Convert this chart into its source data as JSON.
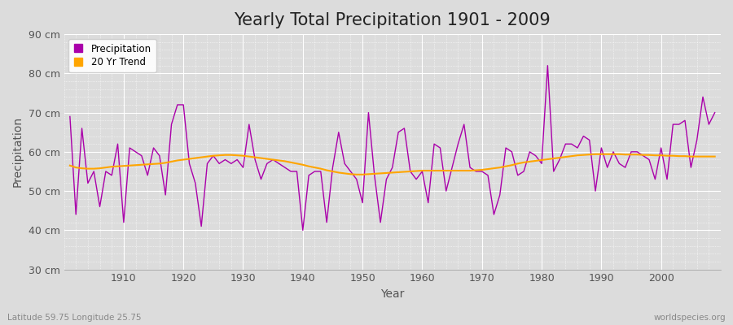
{
  "title": "Yearly Total Precipitation 1901 - 2009",
  "xlabel": "Year",
  "ylabel": "Precipitation",
  "subtitle": "Latitude 59.75 Longitude 25.75",
  "watermark": "worldspecies.org",
  "ylim": [
    30,
    90
  ],
  "yticks": [
    30,
    40,
    50,
    60,
    70,
    80,
    90
  ],
  "ytick_labels": [
    "30 cm",
    "40 cm",
    "50 cm",
    "60 cm",
    "70 cm",
    "80 cm",
    "90 cm"
  ],
  "years": [
    1901,
    1902,
    1903,
    1904,
    1905,
    1906,
    1907,
    1908,
    1909,
    1910,
    1911,
    1912,
    1913,
    1914,
    1915,
    1916,
    1917,
    1918,
    1919,
    1920,
    1921,
    1922,
    1923,
    1924,
    1925,
    1926,
    1927,
    1928,
    1929,
    1930,
    1931,
    1932,
    1933,
    1934,
    1935,
    1936,
    1937,
    1938,
    1939,
    1940,
    1941,
    1942,
    1943,
    1944,
    1945,
    1946,
    1947,
    1948,
    1949,
    1950,
    1951,
    1952,
    1953,
    1954,
    1955,
    1956,
    1957,
    1958,
    1959,
    1960,
    1961,
    1962,
    1963,
    1964,
    1965,
    1966,
    1967,
    1968,
    1969,
    1970,
    1971,
    1972,
    1973,
    1974,
    1975,
    1976,
    1977,
    1978,
    1979,
    1980,
    1981,
    1982,
    1983,
    1984,
    1985,
    1986,
    1987,
    1988,
    1989,
    1990,
    1991,
    1992,
    1993,
    1994,
    1995,
    1996,
    1997,
    1998,
    1999,
    2000,
    2001,
    2002,
    2003,
    2004,
    2005,
    2006,
    2007,
    2008,
    2009
  ],
  "precip": [
    69,
    44,
    66,
    52,
    55,
    46,
    55,
    54,
    62,
    42,
    61,
    60,
    59,
    54,
    61,
    59,
    49,
    67,
    72,
    72,
    57,
    52,
    41,
    57,
    59,
    57,
    58,
    57,
    58,
    56,
    67,
    58,
    53,
    57,
    58,
    57,
    56,
    55,
    55,
    40,
    54,
    55,
    55,
    42,
    56,
    65,
    57,
    55,
    53,
    47,
    70,
    54,
    42,
    53,
    56,
    65,
    66,
    55,
    53,
    55,
    47,
    62,
    61,
    50,
    56,
    62,
    67,
    56,
    55,
    55,
    54,
    44,
    49,
    61,
    60,
    54,
    55,
    60,
    59,
    57,
    82,
    55,
    58,
    62,
    62,
    61,
    64,
    63,
    50,
    61,
    56,
    60,
    57,
    56,
    60,
    60,
    59,
    58,
    53,
    61,
    53,
    67,
    67,
    68,
    56,
    63,
    74,
    67,
    70
  ],
  "trend": [
    56.5,
    56.0,
    55.8,
    55.7,
    55.7,
    55.8,
    56.0,
    56.2,
    56.3,
    56.4,
    56.5,
    56.6,
    56.7,
    56.8,
    56.9,
    57.0,
    57.2,
    57.5,
    57.8,
    58.0,
    58.2,
    58.4,
    58.6,
    58.8,
    59.0,
    59.1,
    59.2,
    59.2,
    59.1,
    59.0,
    58.8,
    58.6,
    58.4,
    58.2,
    58.0,
    57.8,
    57.6,
    57.3,
    57.0,
    56.7,
    56.3,
    56.0,
    55.7,
    55.3,
    55.0,
    54.7,
    54.5,
    54.3,
    54.2,
    54.2,
    54.3,
    54.4,
    54.5,
    54.6,
    54.7,
    54.8,
    54.9,
    55.0,
    55.1,
    55.2,
    55.2,
    55.2,
    55.2,
    55.2,
    55.2,
    55.2,
    55.2,
    55.2,
    55.3,
    55.4,
    55.6,
    55.8,
    56.0,
    56.3,
    56.6,
    57.0,
    57.3,
    57.5,
    57.7,
    57.9,
    58.1,
    58.3,
    58.5,
    58.7,
    58.9,
    59.1,
    59.2,
    59.3,
    59.4,
    59.4,
    59.4,
    59.4,
    59.4,
    59.3,
    59.3,
    59.3,
    59.2,
    59.2,
    59.1,
    59.1,
    59.0,
    59.0,
    58.9,
    58.9,
    58.8,
    58.8,
    58.8,
    58.8,
    58.8
  ],
  "precip_color": "#AA00AA",
  "trend_color": "#FFA500",
  "bg_color": "#DCDCDC",
  "plot_bg_color": "#DCDCDC",
  "title_fontsize": 15,
  "axis_label_fontsize": 10,
  "tick_fontsize": 9,
  "legend_label_precip": "Precipitation",
  "legend_label_trend": "20 Yr Trend"
}
